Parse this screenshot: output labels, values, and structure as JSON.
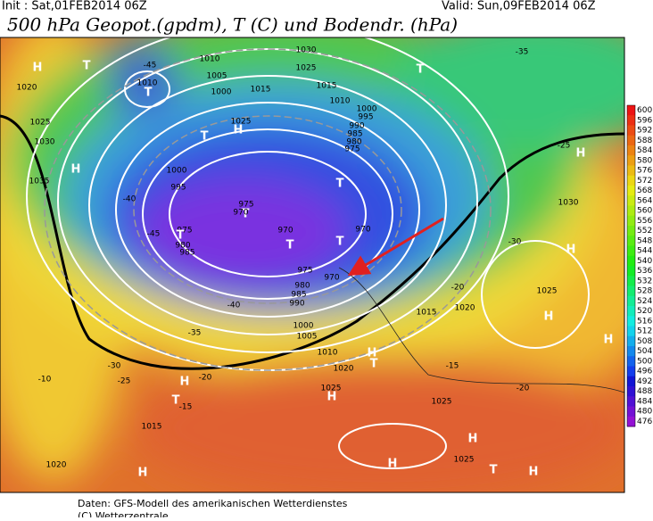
{
  "header": {
    "init": "Init : Sat,01FEB2014 06Z",
    "valid": "Valid: Sun,09FEB2014 06Z",
    "title": "500 hPa Geopot.(gpdm), T (C) und Bodendr. (hPa)"
  },
  "colorbar": {
    "labels": [
      "600",
      "596",
      "592",
      "588",
      "584",
      "580",
      "576",
      "572",
      "568",
      "564",
      "560",
      "556",
      "552",
      "548",
      "544",
      "540",
      "536",
      "532",
      "528",
      "524",
      "520",
      "516",
      "512",
      "508",
      "504",
      "500",
      "496",
      "492",
      "488",
      "484",
      "480",
      "476"
    ]
  },
  "map_labels": [
    "H",
    "T",
    "1020",
    "1025",
    "1030",
    "H",
    "1035",
    "-45",
    "1010",
    "T",
    "1010",
    "1005",
    "1000",
    "1015",
    "1030",
    "1025",
    "1015",
    "1010",
    "1000",
    "995",
    "990",
    "985",
    "980",
    "975",
    "H",
    "1025",
    "T",
    "1000",
    "995",
    "T",
    "975",
    "970",
    "975",
    "980",
    "985",
    "T",
    "T",
    "970",
    "T",
    "T",
    "970",
    "975",
    "970",
    "980",
    "985",
    "990",
    "1000",
    "1005",
    "1010",
    "1020",
    "1025",
    "H",
    "T",
    "H",
    "1015",
    "1020",
    "1025",
    "1030",
    "H",
    "H",
    "H",
    "H",
    "T",
    "-35",
    "-25",
    "-30",
    "-20",
    "-15",
    "-20",
    "-10",
    "-15",
    "-20",
    "T",
    "H",
    "1015",
    "1020",
    "H",
    "H",
    "H",
    "H",
    "T",
    "1025",
    "1025",
    "-35",
    "-40",
    "-30",
    "-25",
    "-40",
    "-45"
  ],
  "footer": {
    "source": "Daten: GFS-Modell des amerikanischen Wetterdienstes",
    "copyright": "(C) Wetterzentrale"
  }
}
